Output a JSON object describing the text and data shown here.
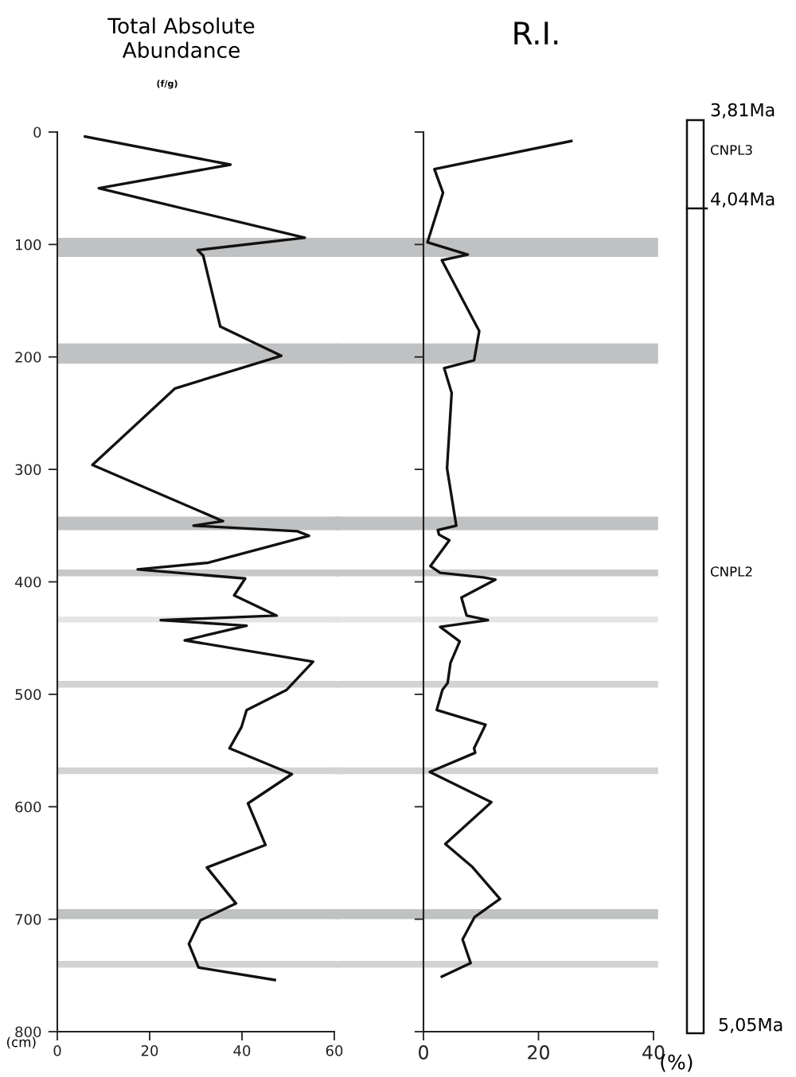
{
  "chart_data": [
    {
      "type": "line",
      "orientation": "horizontal",
      "title": "Total Absolute\nAbundance",
      "subtitle": "(f/g)",
      "ylabel": "(cm)",
      "series": [
        {
          "color": "#111111",
          "x": [
            4,
            29,
            50,
            94,
            105,
            110,
            173,
            199,
            228,
            296,
            346,
            350,
            355,
            359,
            383,
            389,
            397,
            412,
            430,
            434,
            439,
            452,
            471,
            496,
            514,
            529,
            548,
            571,
            597,
            634,
            654,
            686,
            701,
            722,
            743,
            754
          ],
          "values": [
            6,
            37.5,
            9,
            53.6,
            30.4,
            31.6,
            35.3,
            48.5,
            25.5,
            7.6,
            35.9,
            29.5,
            52,
            54.5,
            32.7,
            17.4,
            40.7,
            38.3,
            47.5,
            22.4,
            41,
            27.6,
            55.4,
            49.7,
            41,
            39.9,
            37.3,
            50.8,
            41.3,
            45.1,
            32.4,
            38.7,
            31,
            28.5,
            30.6,
            47.1
          ]
        }
      ],
      "xlim": [
        0,
        60
      ],
      "xticks": [
        {
          "value": 0,
          "label": "0"
        },
        20,
        40,
        60
      ],
      "ylim": [
        800,
        0
      ],
      "yticks": [
        0,
        100,
        200,
        300,
        400,
        500,
        600,
        700,
        800
      ],
      "bands": [
        {
          "axis": "y",
          "from": 94,
          "to": 111,
          "color": "#c0c1c3"
        },
        {
          "axis": "y",
          "from": 188,
          "to": 206,
          "color": "#c0c1c3"
        },
        {
          "axis": "y",
          "from": 342,
          "to": 354,
          "color": "#c0c1c3"
        },
        {
          "axis": "y",
          "from": 389,
          "to": 395,
          "color": "#c8c8c8"
        },
        {
          "axis": "y",
          "from": 431,
          "to": 436,
          "color": "#e3e4e3"
        },
        {
          "axis": "y",
          "from": 488,
          "to": 494,
          "color": "#d3d3d3"
        },
        {
          "axis": "y",
          "from": 565,
          "to": 571,
          "color": "#d3d3d3"
        },
        {
          "axis": "y",
          "from": 691,
          "to": 700,
          "color": "#c0c1c3"
        },
        {
          "axis": "y",
          "from": 737,
          "to": 743,
          "color": "#d3d3d3"
        }
      ],
      "grid": false,
      "legend": false
    },
    {
      "type": "line",
      "orientation": "horizontal",
      "title": "R.I.",
      "xlabel": "(%)",
      "series": [
        {
          "color": "#111111",
          "x": [
            8,
            33,
            54,
            98,
            109,
            114,
            177,
            203,
            210,
            232,
            299,
            350,
            354,
            358,
            363,
            386,
            392,
            396,
            398,
            414,
            430,
            434,
            440,
            453,
            472,
            490,
            496,
            514,
            527,
            548,
            552,
            569,
            596,
            633,
            653,
            682,
            698,
            718,
            739,
            751
          ],
          "values": [
            25.7,
            1.9,
            3.4,
            0.7,
            7.7,
            3.2,
            9.7,
            8.8,
            3.6,
            4.9,
            4.1,
            5.7,
            2.5,
            2.7,
            4.5,
            1.2,
            2.9,
            10.4,
            12.5,
            6.6,
            7.5,
            11.2,
            2.9,
            6.3,
            4.7,
            4.2,
            3.3,
            2.3,
            10.8,
            8.8,
            9,
            1.1,
            11.8,
            3.8,
            8.4,
            13.3,
            8.9,
            6.8,
            8.2,
            3.2
          ]
        }
      ],
      "xlim": [
        0,
        40
      ],
      "xticks": [
        0,
        20,
        40
      ],
      "ylim": [
        800,
        0
      ],
      "yticks": [
        0,
        100,
        200,
        300,
        400,
        500,
        600,
        700,
        800
      ],
      "tick_labels": "x",
      "bands": [
        {
          "axis": "y",
          "from": 94,
          "to": 111,
          "color": "#c0c1c3"
        },
        {
          "axis": "y",
          "from": 188,
          "to": 206,
          "color": "#c0c1c3"
        },
        {
          "axis": "y",
          "from": 342,
          "to": 354,
          "color": "#c0c1c3"
        },
        {
          "axis": "y",
          "from": 389,
          "to": 395,
          "color": "#c8c8c8"
        },
        {
          "axis": "y",
          "from": 431,
          "to": 436,
          "color": "#e3e4e3"
        },
        {
          "axis": "y",
          "from": 488,
          "to": 494,
          "color": "#d3d3d3"
        },
        {
          "axis": "y",
          "from": 565,
          "to": 571,
          "color": "#d3d3d3"
        },
        {
          "axis": "y",
          "from": 691,
          "to": 700,
          "color": "#c0c1c3"
        },
        {
          "axis": "y",
          "from": 737,
          "to": 743,
          "color": "#d3d3d3"
        }
      ],
      "grid": false,
      "legend": false
    },
    {
      "type": "other",
      "annotations": [
        "3,81Ma",
        "CNPL3",
        "4,04Ma",
        "CNPL2",
        "5,05Ma"
      ]
    }
  ]
}
